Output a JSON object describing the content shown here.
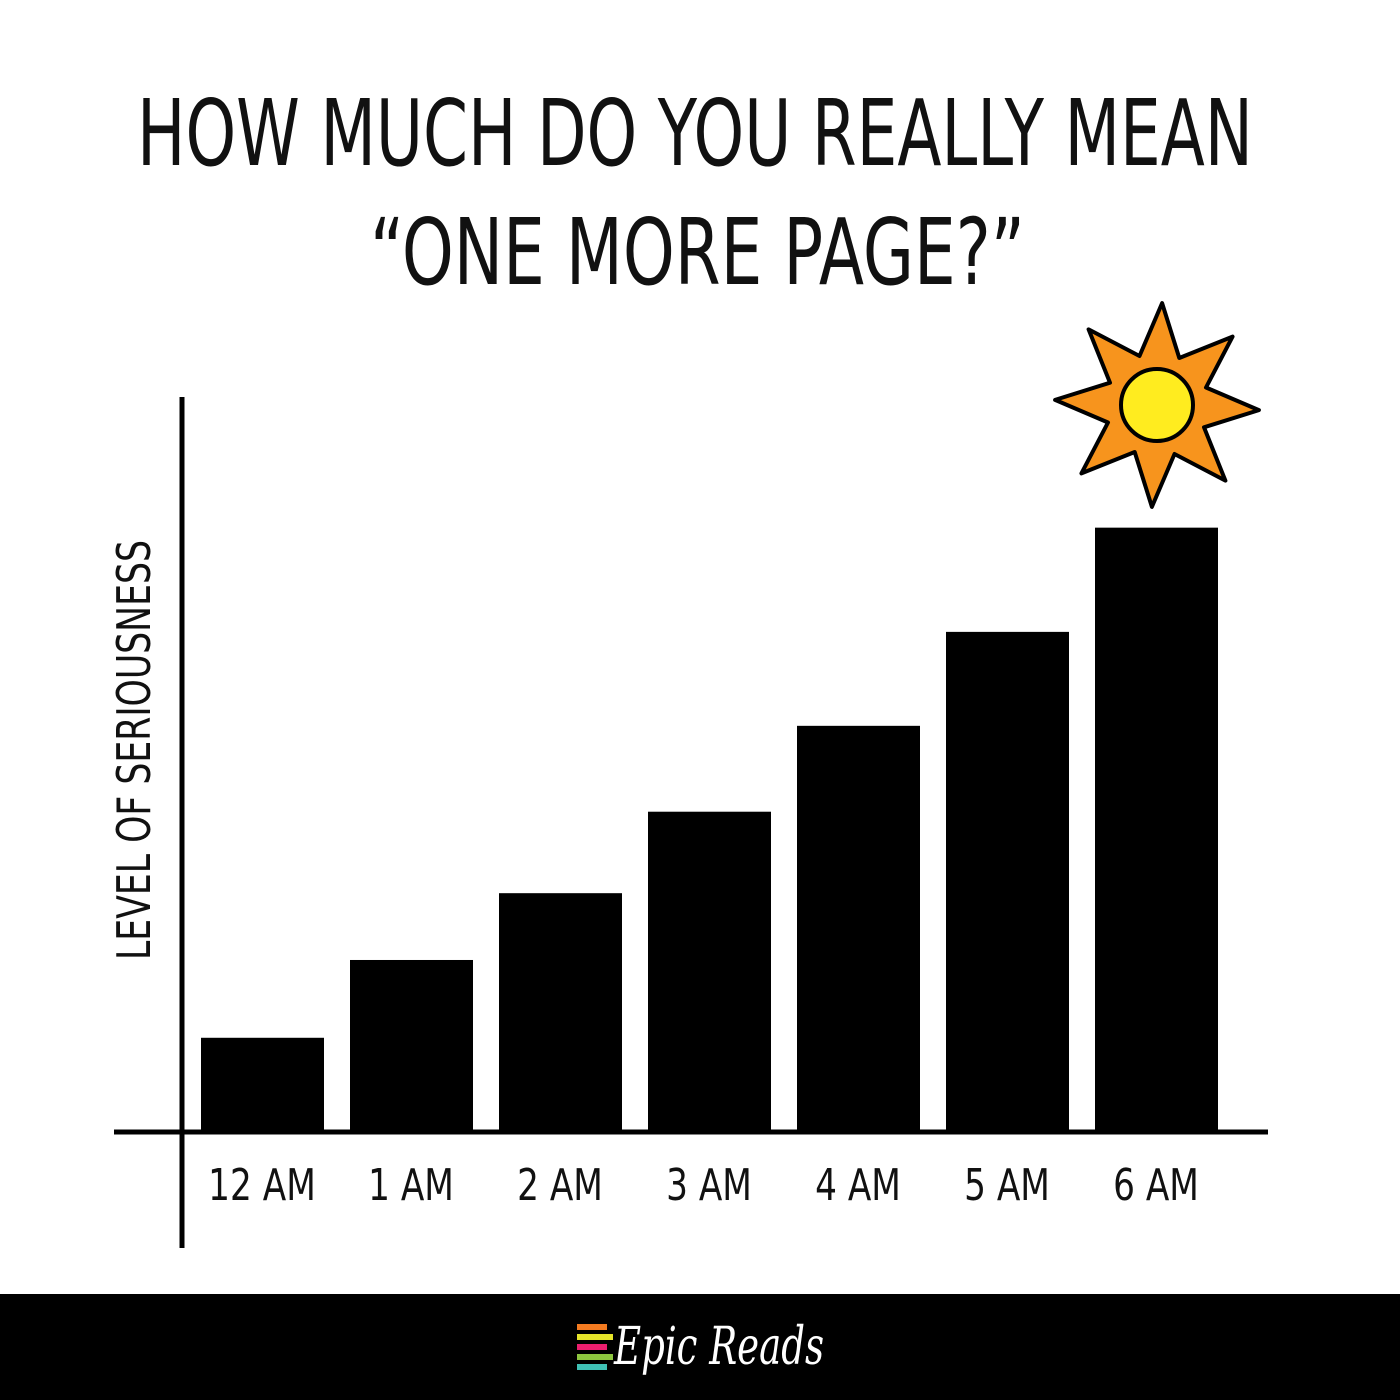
{
  "chart_data": {
    "type": "bar",
    "title": "HOW MUCH DO YOU REALLY MEAN",
    "subtitle": "“ONE MORE PAGE?”",
    "xlabel": "",
    "ylabel": "LEVEL OF SERIOUSNESS",
    "categories": [
      "12 AM",
      "1 AM",
      "2 AM",
      "3 AM",
      "4 AM",
      "5 AM",
      "6 AM"
    ],
    "values": [
      12.7,
      23.3,
      32.4,
      43.5,
      55.2,
      68.0,
      82.2
    ],
    "ylim": [
      0,
      100
    ],
    "grid": false,
    "bar_color": "#000000",
    "annotation": "sun-icon",
    "sun_colors": {
      "rays": "#F7941D",
      "core": "#FFEC1F"
    }
  },
  "footer": {
    "logo_text": "Epic Reads",
    "logo_stripes": [
      "#F47B20",
      "#E6E52A",
      "#EC1E6E",
      "#8DC63F",
      "#3FC1B5"
    ]
  }
}
